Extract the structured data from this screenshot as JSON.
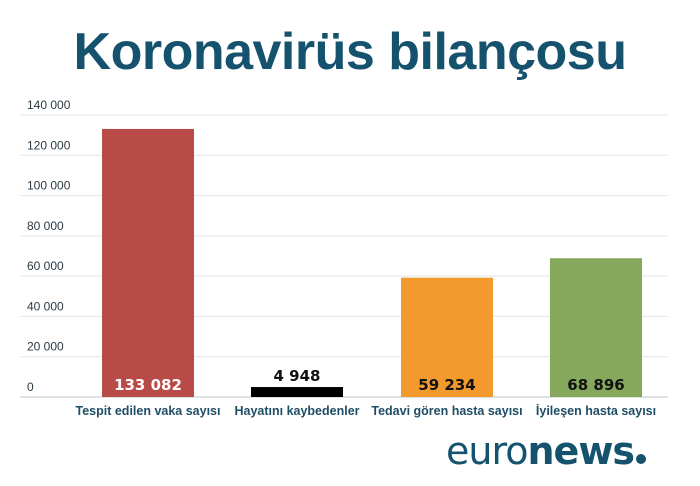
{
  "title": "Koronavirüs bilançosu",
  "logo": {
    "part1": "euro",
    "part2": "news"
  },
  "chart_data": {
    "type": "bar",
    "title": "Koronavirüs bilançosu",
    "xlabel": "",
    "ylabel": "",
    "categories": [
      "Tespit edilen vaka sayısı",
      "Hayatını kaybedenler",
      "Tedavi gören hasta sayısı",
      "İyileşen hasta sayısı"
    ],
    "values": [
      133082,
      4948,
      59234,
      68896
    ],
    "value_labels": [
      "133 082",
      "4 948",
      "59 234",
      "68 896"
    ],
    "colors": [
      "#b84a48",
      "#000000",
      "#f29a2e",
      "#85a85c"
    ],
    "ylim": [
      0,
      140000
    ],
    "yticks": [
      0,
      20000,
      40000,
      60000,
      80000,
      100000,
      120000,
      140000
    ],
    "ytick_labels": [
      "0",
      "20 000",
      "40 000",
      "60 000",
      "80 000",
      "100 000",
      "120 000",
      "140 000"
    ],
    "grid": true,
    "legend": "none"
  }
}
